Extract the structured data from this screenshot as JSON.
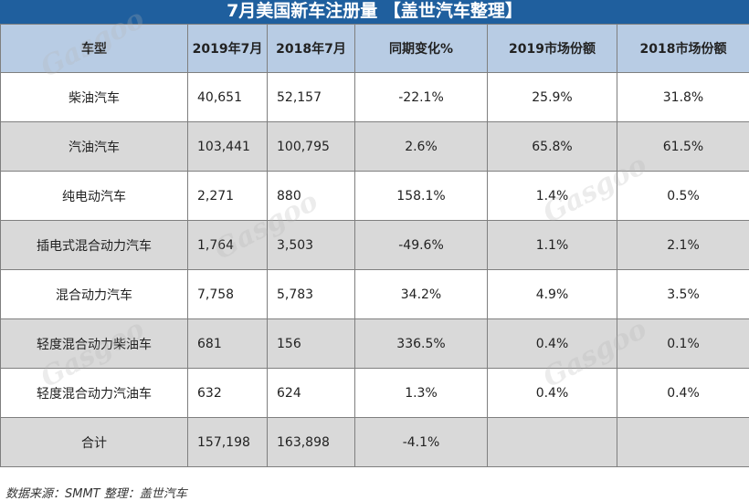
{
  "title": "7月美国新车注册量 【盖世汽车整理】",
  "table": {
    "headers": [
      "车型",
      "2019年7月",
      "2018年7月",
      "同期变化%",
      "2019市场份额",
      "2018市场份额"
    ],
    "rows": [
      [
        "柴油汽车",
        "40,651",
        "52,157",
        "-22.1%",
        "25.9%",
        "31.8%"
      ],
      [
        "汽油汽车",
        "103,441",
        "100,795",
        "2.6%",
        "65.8%",
        "61.5%"
      ],
      [
        "纯电动汽车",
        "2,271",
        "880",
        "158.1%",
        "1.4%",
        "0.5%"
      ],
      [
        "插电式混合动力汽车",
        "1,764",
        "3,503",
        "-49.6%",
        "1.1%",
        "2.1%"
      ],
      [
        "混合动力汽车",
        "7,758",
        "5,783",
        "34.2%",
        "4.9%",
        "3.5%"
      ],
      [
        "轻度混合动力柴油车",
        "681",
        "156",
        "336.5%",
        "0.4%",
        "0.1%"
      ],
      [
        "轻度混合动力汽油车",
        "632",
        "624",
        "1.3%",
        "0.4%",
        "0.4%"
      ],
      [
        "合计",
        "157,198",
        "163,898",
        "-4.1%",
        "",
        ""
      ]
    ]
  },
  "footer": "数据来源：SMMT  整理：盖世汽车",
  "watermark": "Gasgoo",
  "colors": {
    "title_bg": "#1f5f9e",
    "header_bg": "#b8cce4",
    "row_shade": "#d9d9d9"
  }
}
